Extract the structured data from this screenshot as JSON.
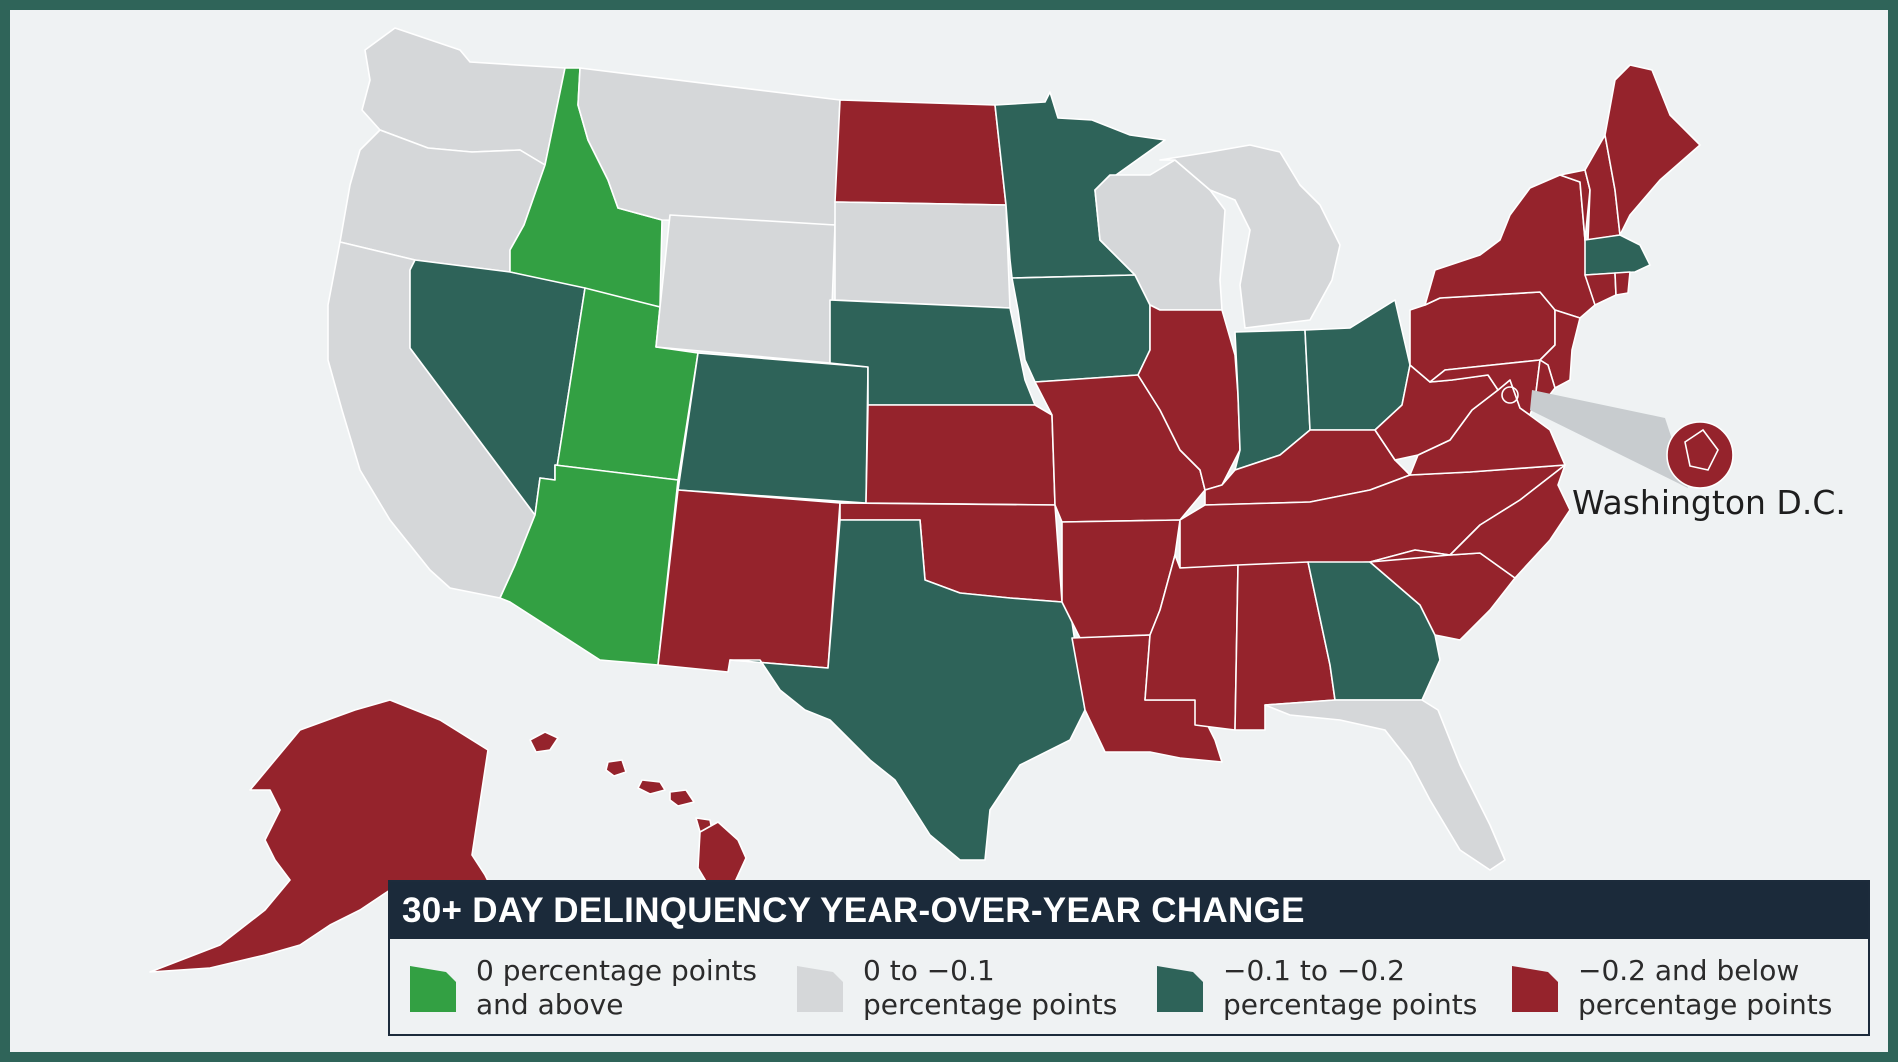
{
  "legend": {
    "title": "30+ DAY DELINQUENCY YEAR-OVER-YEAR CHANGE",
    "items": [
      {
        "line1": "0 percentage points",
        "line2": "and above",
        "color": "#33a043",
        "category": "gain"
      },
      {
        "line1": "0 to −0.1",
        "line2": "percentage points",
        "color": "#d5d7d9",
        "category": "slight"
      },
      {
        "line1": "−0.1 to −0.2",
        "line2": "percentage points",
        "color": "#2e6359",
        "category": "moderate"
      },
      {
        "line1": "−0.2 and below",
        "line2": "percentage points",
        "color": "#95232c",
        "category": "large"
      }
    ]
  },
  "callout": {
    "label": "Washington D.C.",
    "category": "large"
  },
  "states": {
    "WA": "slight",
    "OR": "slight",
    "CA": "slight",
    "ID": "gain",
    "NV": "moderate",
    "UT": "gain",
    "AZ": "gain",
    "MT": "slight",
    "WY": "slight",
    "CO": "moderate",
    "NM": "large",
    "ND": "large",
    "SD": "slight",
    "NE": "moderate",
    "KS": "large",
    "OK": "large",
    "TX": "moderate",
    "MN": "moderate",
    "IA": "moderate",
    "MO": "large",
    "AR": "large",
    "LA": "large",
    "WI": "slight",
    "MI": "slight",
    "IL": "large",
    "IN": "moderate",
    "OH": "moderate",
    "KY": "large",
    "TN": "large",
    "MS": "large",
    "AL": "large",
    "GA": "moderate",
    "FL": "slight",
    "SC": "large",
    "NC": "large",
    "VA": "large",
    "WV": "large",
    "PA": "large",
    "NY": "large",
    "NJ": "large",
    "DE": "large",
    "MD": "large",
    "VT": "large",
    "NH": "large",
    "ME": "large",
    "MA": "moderate",
    "CT": "large",
    "RI": "large",
    "AK": "large",
    "HI": "large"
  }
}
